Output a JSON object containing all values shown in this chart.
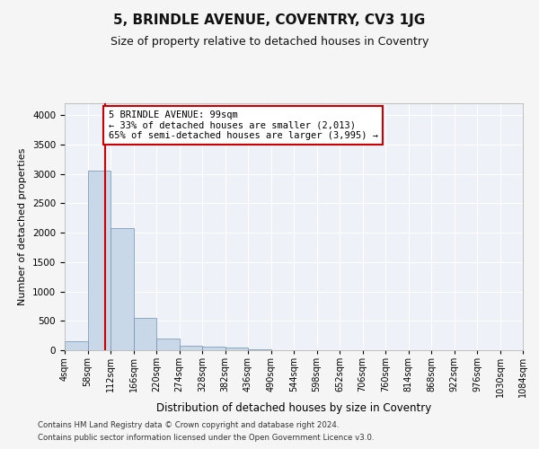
{
  "title": "5, BRINDLE AVENUE, COVENTRY, CV3 1JG",
  "subtitle": "Size of property relative to detached houses in Coventry",
  "xlabel": "Distribution of detached houses by size in Coventry",
  "ylabel": "Number of detached properties",
  "footer_line1": "Contains HM Land Registry data © Crown copyright and database right 2024.",
  "footer_line2": "Contains public sector information licensed under the Open Government Licence v3.0.",
  "bin_edges": [
    4,
    58,
    112,
    166,
    220,
    274,
    328,
    382,
    436,
    490,
    544,
    598,
    652,
    706,
    760,
    814,
    868,
    922,
    976,
    1030,
    1084
  ],
  "bar_heights": [
    150,
    3050,
    2080,
    550,
    200,
    75,
    55,
    50,
    10,
    3,
    2,
    1,
    1,
    1,
    0,
    0,
    0,
    0,
    0,
    0
  ],
  "bar_color": "#c8d8e8",
  "bar_edge_color": "#7090b0",
  "property_line_x": 99,
  "property_line_color": "#cc0000",
  "annotation_text": "5 BRINDLE AVENUE: 99sqm\n← 33% of detached houses are smaller (2,013)\n65% of semi-detached houses are larger (3,995) →",
  "annotation_box_color": "#cc0000",
  "ylim": [
    0,
    4200
  ],
  "yticks": [
    0,
    500,
    1000,
    1500,
    2000,
    2500,
    3000,
    3500,
    4000
  ],
  "bg_color": "#eef2f8",
  "fig_bg_color": "#f5f5f5",
  "grid_color": "#ffffff",
  "title_fontsize": 11,
  "subtitle_fontsize": 9,
  "tick_label_fontsize": 7,
  "ylabel_fontsize": 8,
  "xlabel_fontsize": 8.5,
  "footer_fontsize": 6.2
}
